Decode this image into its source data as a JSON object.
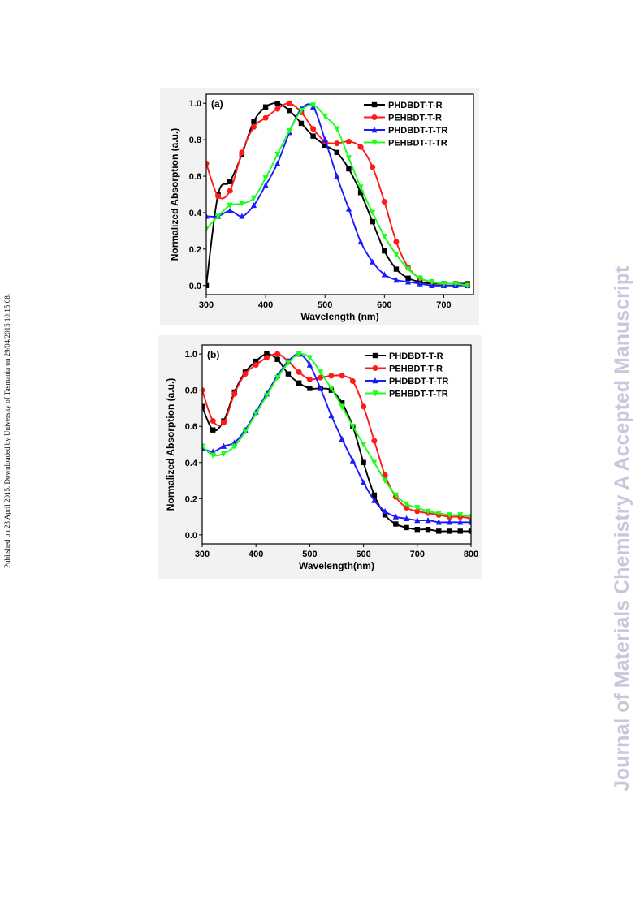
{
  "side_note": "Published on 23 April 2015. Downloaded by University of Tasmania on 29/04/2015 10:15:08.",
  "watermark": "Journal of Materials Chemistry A Accepted Manuscript",
  "chart_data": [
    {
      "type": "line",
      "panel_label": "(a)",
      "xlabel": "Wavelength (nm)",
      "ylabel": "Normalized Absorption (a.u.)",
      "xlim": [
        300,
        750
      ],
      "ylim": [
        -0.05,
        1.05
      ],
      "xticks": [
        "300",
        "400",
        "500",
        "600",
        "700"
      ],
      "yticks": [
        "0.0",
        "0.2",
        "0.4",
        "0.6",
        "0.8",
        "1.0"
      ],
      "legend_position": "top-right",
      "series": [
        {
          "name": "PHDBDT-T-R",
          "color": "#000000",
          "marker": "square",
          "x": [
            300,
            320,
            340,
            360,
            380,
            400,
            420,
            440,
            460,
            480,
            500,
            520,
            540,
            560,
            580,
            600,
            620,
            640,
            660,
            680,
            700,
            720,
            740
          ],
          "y": [
            0.0,
            0.5,
            0.57,
            0.72,
            0.9,
            0.98,
            1.0,
            0.96,
            0.89,
            0.82,
            0.77,
            0.73,
            0.64,
            0.51,
            0.35,
            0.19,
            0.09,
            0.04,
            0.02,
            0.01,
            0.01,
            0.01,
            0.01
          ]
        },
        {
          "name": "PEHBDT-T-R",
          "color": "#ff1a1a",
          "marker": "circle",
          "x": [
            300,
            320,
            340,
            360,
            380,
            400,
            420,
            440,
            460,
            480,
            500,
            520,
            540,
            560,
            580,
            600,
            620,
            640,
            660,
            680,
            700,
            720,
            740
          ],
          "y": [
            0.67,
            0.49,
            0.52,
            0.73,
            0.87,
            0.92,
            0.97,
            1.0,
            0.95,
            0.86,
            0.79,
            0.78,
            0.79,
            0.76,
            0.65,
            0.46,
            0.24,
            0.1,
            0.04,
            0.02,
            0.01,
            0.01,
            0.0
          ]
        },
        {
          "name": "PHDBDT-T-TR",
          "color": "#1a1aff",
          "marker": "triangle-up",
          "x": [
            300,
            320,
            340,
            360,
            380,
            400,
            420,
            440,
            460,
            480,
            500,
            520,
            540,
            560,
            580,
            600,
            620,
            640,
            660,
            680,
            700,
            720,
            740
          ],
          "y": [
            0.38,
            0.38,
            0.41,
            0.38,
            0.44,
            0.55,
            0.67,
            0.84,
            0.97,
            0.98,
            0.8,
            0.6,
            0.42,
            0.24,
            0.13,
            0.06,
            0.03,
            0.02,
            0.01,
            0.0,
            0.0,
            0.0,
            0.0
          ]
        },
        {
          "name": "PEHBDT-T-TR",
          "color": "#1aff1a",
          "marker": "triangle-down",
          "x": [
            300,
            320,
            340,
            360,
            380,
            400,
            420,
            440,
            460,
            480,
            500,
            520,
            540,
            560,
            580,
            600,
            620,
            640,
            660,
            680,
            700,
            720,
            740
          ],
          "y": [
            0.31,
            0.38,
            0.44,
            0.45,
            0.48,
            0.59,
            0.72,
            0.85,
            0.96,
            0.99,
            0.93,
            0.86,
            0.7,
            0.54,
            0.4,
            0.27,
            0.17,
            0.09,
            0.04,
            0.02,
            0.01,
            0.01,
            0.0
          ]
        }
      ]
    },
    {
      "type": "line",
      "panel_label": "(b)",
      "xlabel": "Wavelength(nm)",
      "ylabel": "Normalized Absorption (a.u.)",
      "xlim": [
        300,
        800
      ],
      "ylim": [
        -0.05,
        1.05
      ],
      "xticks": [
        "300",
        "400",
        "500",
        "600",
        "700",
        "800"
      ],
      "yticks": [
        "0.0",
        "0.2",
        "0.4",
        "0.6",
        "0.8",
        "1.0"
      ],
      "legend_position": "top-right",
      "series": [
        {
          "name": "PHDBDT-T-R",
          "color": "#000000",
          "marker": "square",
          "x": [
            300,
            320,
            340,
            360,
            380,
            400,
            420,
            440,
            460,
            480,
            500,
            520,
            540,
            560,
            580,
            600,
            620,
            640,
            660,
            680,
            700,
            720,
            740,
            760,
            780,
            800
          ],
          "y": [
            0.71,
            0.58,
            0.63,
            0.79,
            0.9,
            0.96,
            1.0,
            0.97,
            0.89,
            0.84,
            0.81,
            0.81,
            0.8,
            0.73,
            0.6,
            0.4,
            0.22,
            0.11,
            0.06,
            0.04,
            0.03,
            0.03,
            0.02,
            0.02,
            0.02,
            0.02
          ]
        },
        {
          "name": "PEHBDT-T-R",
          "color": "#ff1a1a",
          "marker": "circle",
          "x": [
            300,
            320,
            340,
            360,
            380,
            400,
            420,
            440,
            460,
            480,
            500,
            520,
            540,
            560,
            580,
            600,
            620,
            640,
            660,
            680,
            700,
            720,
            740,
            760,
            780,
            800
          ],
          "y": [
            0.8,
            0.63,
            0.62,
            0.78,
            0.89,
            0.94,
            0.98,
            1.0,
            0.96,
            0.9,
            0.86,
            0.87,
            0.88,
            0.88,
            0.85,
            0.71,
            0.52,
            0.33,
            0.21,
            0.15,
            0.13,
            0.12,
            0.11,
            0.1,
            0.1,
            0.09
          ]
        },
        {
          "name": "PHDBDT-T-TR",
          "color": "#1a1aff",
          "marker": "triangle-up",
          "x": [
            300,
            320,
            340,
            360,
            380,
            400,
            420,
            440,
            460,
            480,
            500,
            520,
            540,
            560,
            580,
            600,
            620,
            640,
            660,
            680,
            700,
            720,
            740,
            760,
            780,
            800
          ],
          "y": [
            0.48,
            0.46,
            0.49,
            0.51,
            0.58,
            0.68,
            0.78,
            0.88,
            0.96,
            1.0,
            0.94,
            0.81,
            0.66,
            0.53,
            0.41,
            0.29,
            0.19,
            0.13,
            0.1,
            0.09,
            0.08,
            0.08,
            0.07,
            0.07,
            0.07,
            0.07
          ]
        },
        {
          "name": "PEHBDT-T-TR",
          "color": "#1aff1a",
          "marker": "triangle-down",
          "x": [
            300,
            320,
            340,
            360,
            380,
            400,
            420,
            440,
            460,
            480,
            500,
            520,
            540,
            560,
            580,
            600,
            620,
            640,
            660,
            680,
            700,
            720,
            740,
            760,
            780,
            800
          ],
          "y": [
            0.49,
            0.44,
            0.45,
            0.49,
            0.57,
            0.67,
            0.77,
            0.87,
            0.95,
            1.0,
            0.98,
            0.9,
            0.81,
            0.71,
            0.6,
            0.5,
            0.4,
            0.3,
            0.22,
            0.17,
            0.15,
            0.13,
            0.12,
            0.11,
            0.11,
            0.1
          ]
        }
      ]
    }
  ]
}
